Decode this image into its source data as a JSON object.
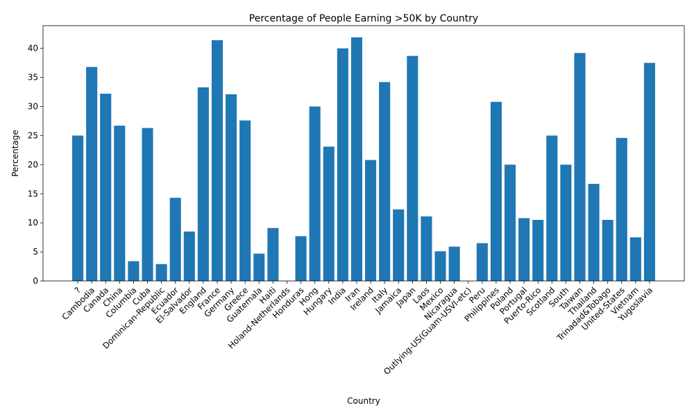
{
  "chart_data": {
    "type": "bar",
    "title": "Percentage of People Earning >50K by Country",
    "xlabel": "Country",
    "ylabel": "Percentage",
    "ylim": [
      0,
      43.9
    ],
    "yticks": [
      0,
      5,
      10,
      15,
      20,
      25,
      30,
      35,
      40
    ],
    "grid": false,
    "bar_color": "#1f77b4",
    "categories": [
      "?",
      "Cambodia",
      "Canada",
      "China",
      "Columbia",
      "Cuba",
      "Dominican-Republic",
      "Ecuador",
      "El-Salvador",
      "England",
      "France",
      "Germany",
      "Greece",
      "Guatemala",
      "Haiti",
      "Holand-Netherlands",
      "Honduras",
      "Hong",
      "Hungary",
      "India",
      "Iran",
      "Ireland",
      "Italy",
      "Jamaica",
      "Japan",
      "Laos",
      "Mexico",
      "Nicaragua",
      "Outlying-US(Guam-USVI-etc)",
      "Peru",
      "Philippines",
      "Poland",
      "Portugal",
      "Puerto-Rico",
      "Scotland",
      "South",
      "Taiwan",
      "Thailand",
      "Trinadad&Tobago",
      "United-States",
      "Vietnam",
      "Yugoslavia"
    ],
    "values": [
      25.0,
      36.8,
      32.2,
      26.7,
      3.4,
      26.3,
      2.9,
      14.3,
      8.5,
      33.3,
      41.4,
      32.1,
      27.6,
      4.7,
      9.1,
      0.0,
      7.7,
      30.0,
      23.1,
      40.0,
      41.9,
      20.8,
      34.2,
      12.3,
      38.7,
      11.1,
      5.1,
      5.9,
      0.0,
      6.5,
      30.8,
      20.0,
      10.8,
      10.5,
      25.0,
      20.0,
      39.2,
      16.7,
      10.5,
      24.6,
      7.5,
      37.5
    ]
  }
}
